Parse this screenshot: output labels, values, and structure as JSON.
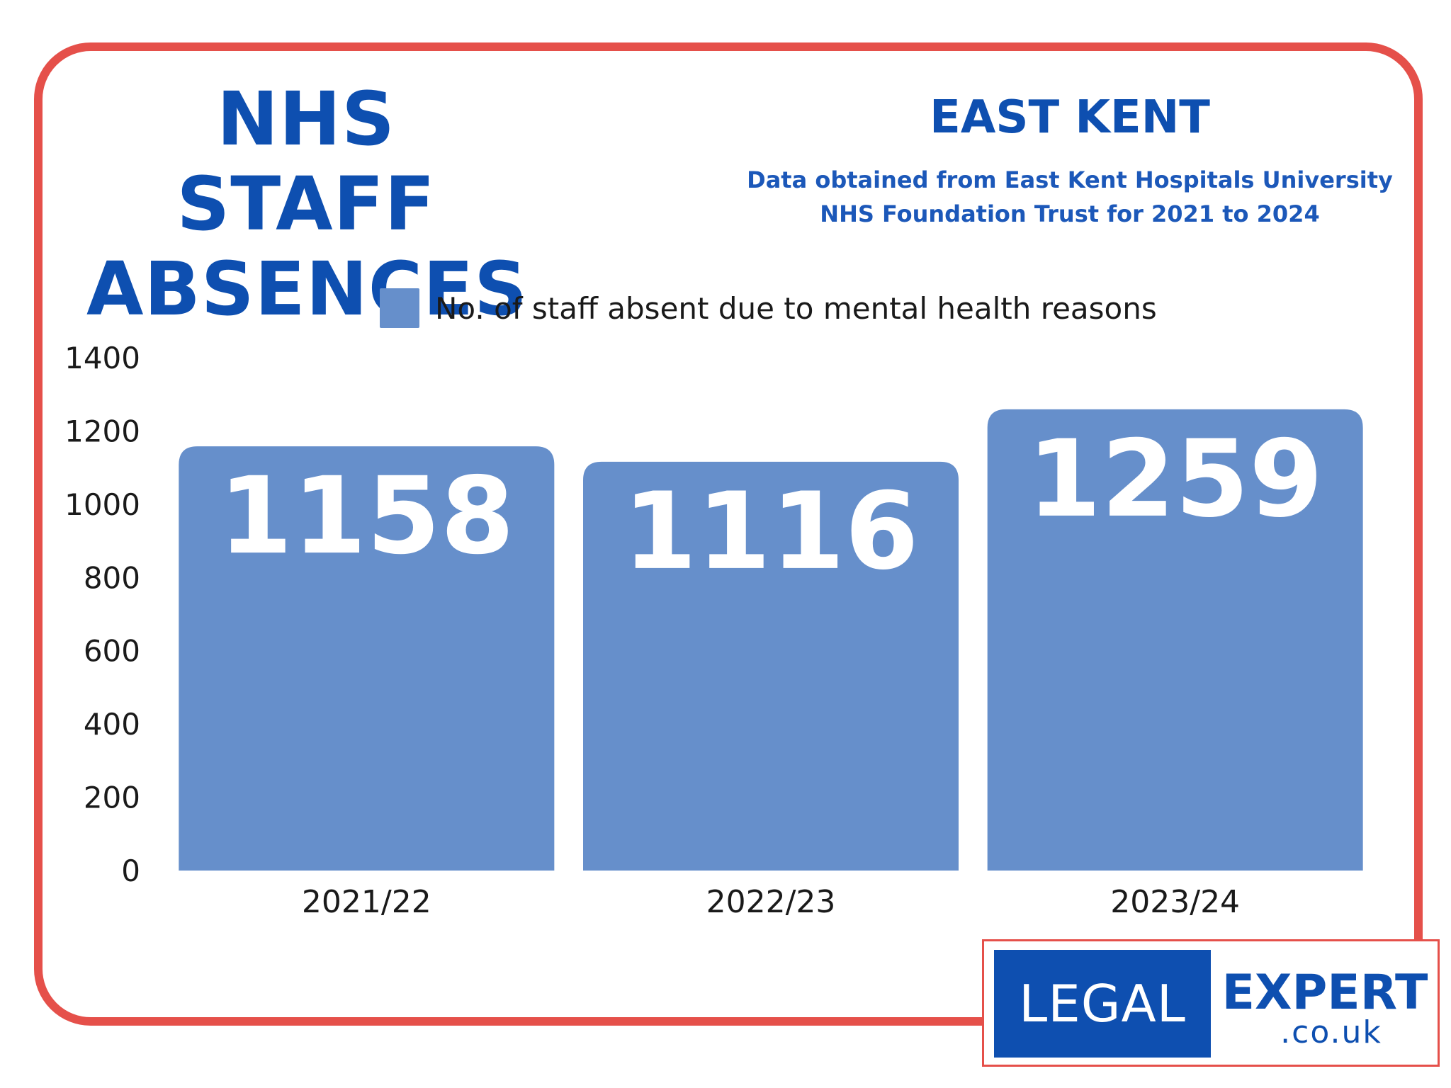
{
  "header": {
    "title_line1": "NHS STAFF",
    "title_line2": "ABSENCES",
    "region": "EAST KENT",
    "source_line1": "Data obtained from East Kent Hospitals University",
    "source_line2": "NHS Foundation Trust for 2021 to 2024"
  },
  "colors": {
    "frame": "#e5504a",
    "title": "#0e4fb0",
    "bar": "#668fcb"
  },
  "chart_data": {
    "type": "bar",
    "categories": [
      "2021/22",
      "2022/23",
      "2023/24"
    ],
    "series": [
      {
        "name": "No. of staff absent due to mental health reasons",
        "values": [
          1158,
          1116,
          1259
        ]
      }
    ],
    "data_labels": [
      "1158",
      "1116",
      "1259"
    ],
    "ylim": [
      0,
      1400
    ],
    "yticks": [
      "0",
      "200",
      "400",
      "600",
      "800",
      "1000",
      "1200",
      "1400"
    ],
    "legend": "top-center",
    "grid": false
  },
  "logo": {
    "left_text": "LEGAL",
    "right_text": "EXPERT",
    "domain": ".co.uk"
  }
}
